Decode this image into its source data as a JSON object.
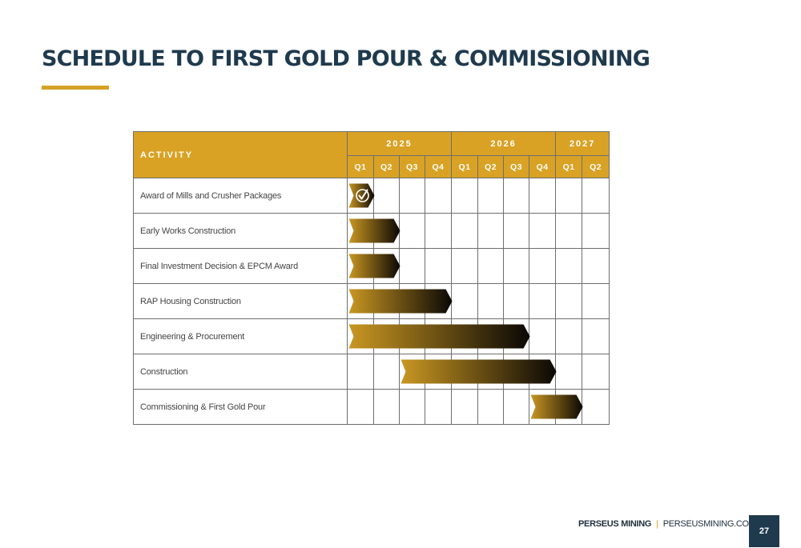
{
  "title": "SCHEDULE TO FIRST GOLD POUR & COMMISSIONING",
  "colors": {
    "accent": "#d9a224",
    "title": "#1f3a4d",
    "bar_start": "#c99722",
    "bar_end": "#0a0705"
  },
  "table": {
    "activity_header": "ACTIVITY",
    "years": [
      {
        "label": "2025",
        "quarters": 4
      },
      {
        "label": "2026",
        "quarters": 4
      },
      {
        "label": "2027",
        "quarters": 2
      }
    ],
    "quarters": [
      "Q1",
      "Q2",
      "Q3",
      "Q4",
      "Q1",
      "Q2",
      "Q3",
      "Q4",
      "Q1",
      "Q2"
    ],
    "activities": [
      {
        "name": "Award of Mills and Crusher Packages",
        "start": 0,
        "end": 1,
        "completed": true
      },
      {
        "name": "Early Works Construction",
        "start": 0,
        "end": 2
      },
      {
        "name": "Final Investment Decision & EPCM Award",
        "start": 0,
        "end": 2
      },
      {
        "name": "RAP Housing Construction",
        "start": 0,
        "end": 4
      },
      {
        "name": "Engineering & Procurement",
        "start": 0,
        "end": 7
      },
      {
        "name": "Construction",
        "start": 2,
        "end": 8
      },
      {
        "name": "Commissioning & First Gold Pour",
        "start": 7,
        "end": 9
      }
    ]
  },
  "footer": {
    "company": "PERSEUS MINING",
    "separator": "|",
    "website": "PERSEUSMINING.COM",
    "page_number": "27"
  }
}
